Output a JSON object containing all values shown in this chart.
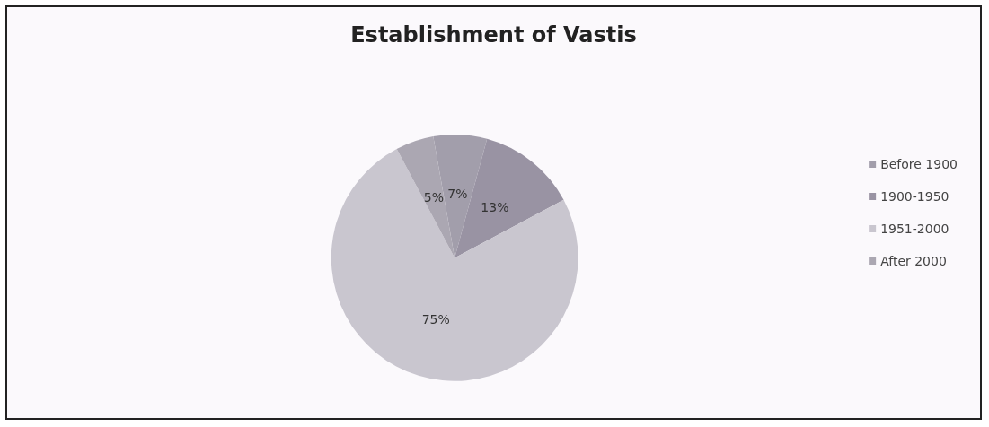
{
  "chart_data": {
    "type": "pie",
    "title": "Establishment of Vastis",
    "categories": [
      "Before 1900",
      "1900-1950",
      "1951-2000",
      "After 2000"
    ],
    "values": [
      7,
      13,
      75,
      5
    ],
    "colors": [
      "#a29eab",
      "#9993a3",
      "#c9c6cf",
      "#aba7b2"
    ],
    "value_labels": [
      "7%",
      "13%",
      "75%",
      "5%"
    ],
    "legend": "right"
  }
}
